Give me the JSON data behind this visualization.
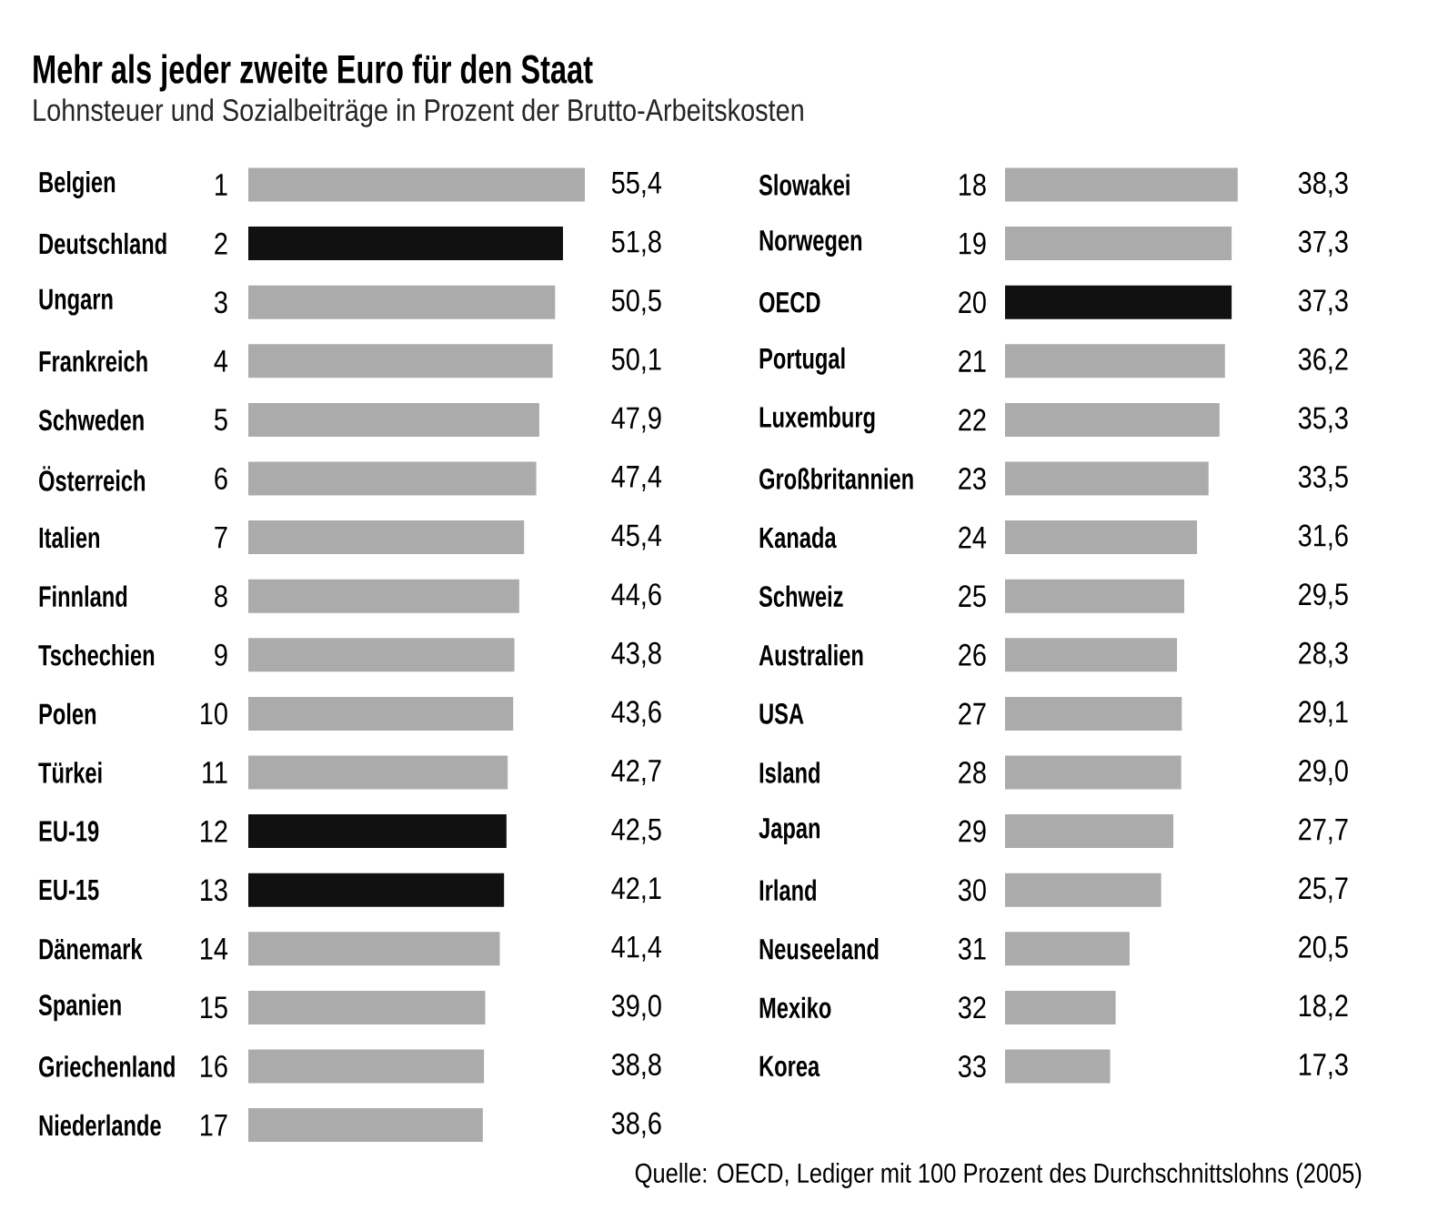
{
  "chart_data": [
    {
      "type": "bar",
      "orientation": "horizontal",
      "title": "Mehr als jeder zweite Euro für den Staat",
      "subtitle": "Lohnsteuer und Sozialbeiträge in Prozent der Brutto-Arbeitskosten",
      "categories": [
        "Belgien",
        "Deutschland",
        "Ungarn",
        "Frankreich",
        "Schweden",
        "Österreich",
        "Italien",
        "Finnland",
        "Tschechien",
        "Polen",
        "Türkei",
        "EU-19",
        "EU-15",
        "Dänemark",
        "Spanien",
        "Griechenland",
        "Niederlande"
      ],
      "values": [
        55.4,
        51.8,
        50.5,
        50.1,
        47.9,
        47.4,
        45.4,
        44.6,
        43.8,
        43.6,
        42.7,
        42.5,
        42.1,
        41.4,
        39.0,
        38.8,
        38.6
      ],
      "value_labels": [
        "55,4",
        "51,8",
        "50,5",
        "50,1",
        "47,9",
        "47,4",
        "45,4",
        "44,6",
        "43,8",
        "43,6",
        "42,7",
        "42,5",
        "42,1",
        "41,4",
        "39,0",
        "38,8",
        "38,6"
      ],
      "colors": [
        "#ababab",
        "#111111",
        "#ababab",
        "#ababab",
        "#ababab",
        "#ababab",
        "#ababab",
        "#ababab",
        "#ababab",
        "#ababab",
        "#ababab",
        "#111111",
        "#111111",
        "#ababab",
        "#ababab",
        "#ababab",
        "#ababab"
      ],
      "annotations": [
        "1",
        "2",
        "3",
        "4",
        "5",
        "6",
        "7",
        "8",
        "9",
        "10",
        "11",
        "12",
        "13",
        "14",
        "15",
        "16",
        "17"
      ]
    },
    {
      "type": "bar",
      "orientation": "horizontal",
      "categories": [
        "Slowakei",
        "Norwegen",
        "OECD",
        "Portugal",
        "Luxemburg",
        "Großbritannien",
        "Kanada",
        "Schweiz",
        "Australien",
        "USA",
        "Island",
        "Japan",
        "Irland",
        "Neuseeland",
        "Mexiko",
        "Korea"
      ],
      "values": [
        38.3,
        37.3,
        37.3,
        36.2,
        35.3,
        33.5,
        31.6,
        29.5,
        28.3,
        29.1,
        29.0,
        27.7,
        25.7,
        20.5,
        18.2,
        17.3
      ],
      "value_labels": [
        "38,3",
        "37,3",
        "37,3",
        "36,2",
        "35,3",
        "33,5",
        "31,6",
        "29,5",
        "28,3",
        "29,1",
        "29,0",
        "27,7",
        "25,7",
        "20,5",
        "18,2",
        "17,3"
      ],
      "colors": [
        "#ababab",
        "#ababab",
        "#111111",
        "#ababab",
        "#ababab",
        "#ababab",
        "#ababab",
        "#ababab",
        "#ababab",
        "#ababab",
        "#ababab",
        "#ababab",
        "#ababab",
        "#ababab",
        "#ababab",
        "#ababab"
      ],
      "annotations": [
        "18",
        "19",
        "20",
        "21",
        "22",
        "23",
        "24",
        "25",
        "26",
        "27",
        "28",
        "29",
        "30",
        "31",
        "32",
        "33",
        "Quelle: OECD, Lediger mit 100 Prozent des Durchschnittslohns (2005)"
      ]
    }
  ]
}
